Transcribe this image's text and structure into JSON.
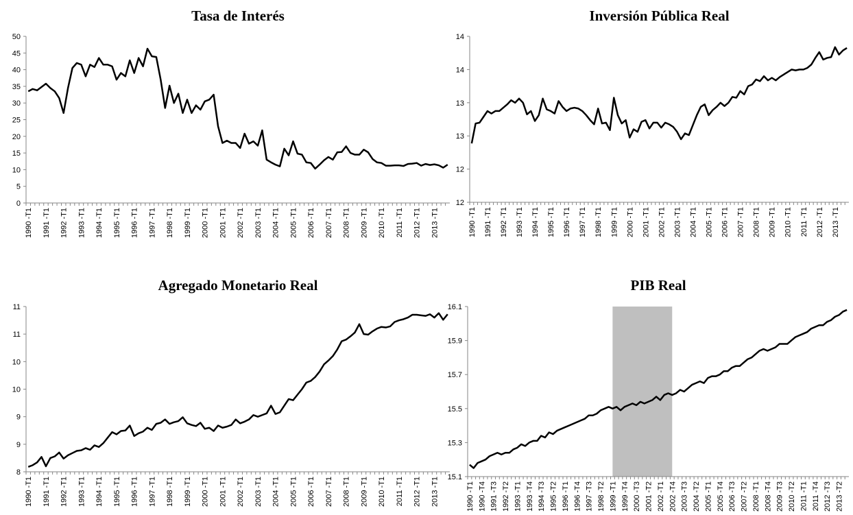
{
  "chart_data": [
    {
      "type": "line",
      "title": "Tasa de Interés",
      "categories": [
        "1990 -T1",
        null,
        null,
        null,
        "1991 -T1",
        null,
        null,
        null,
        "1992 -T1",
        null,
        null,
        null,
        "1993 -T1",
        null,
        null,
        null,
        "1994 -T1",
        null,
        null,
        null,
        "1995 -T1",
        null,
        null,
        null,
        "1996 -T1",
        null,
        null,
        null,
        "1997 -T1",
        null,
        null,
        null,
        "1998 -T1",
        null,
        null,
        null,
        "1999 -T1",
        null,
        null,
        null,
        "2000 -T1",
        null,
        null,
        null,
        "2001 -T1",
        null,
        null,
        null,
        "2002 -T1",
        null,
        null,
        null,
        "2003 -T1",
        null,
        null,
        null,
        "2004 -T1",
        null,
        null,
        null,
        "2005 -T1",
        null,
        null,
        null,
        "2006 -T1",
        null,
        null,
        null,
        "2007 -T1",
        null,
        null,
        null,
        "2008 -T1",
        null,
        null,
        null,
        "2009 -T1",
        null,
        null,
        null,
        "2010 -T1",
        null,
        null,
        null,
        "2011 -T1",
        null,
        null,
        null,
        "2012 -T1",
        null,
        null,
        null,
        "2013 -T1",
        null,
        null,
        null
      ],
      "series": [
        {
          "color": "#000000",
          "values": [
            33.5,
            34.2,
            33.8,
            34.8,
            35.8,
            34.5,
            33.5,
            31.5,
            27,
            34.5,
            40.5,
            42,
            41.5,
            38,
            41.5,
            40.8,
            43.5,
            41.5,
            41.5,
            41,
            37,
            39,
            38,
            42.8,
            39,
            43.5,
            41,
            46.3,
            44,
            43.8,
            37,
            28.5,
            35.2,
            30,
            32.8,
            27,
            31,
            27,
            29.3,
            28,
            30.5,
            31,
            32.5,
            23,
            18,
            18.7,
            18,
            18,
            16.5,
            20.8,
            17.8,
            18.5,
            17.2,
            21.8,
            13,
            12.2,
            11.5,
            11,
            16.3,
            14.3,
            18.5,
            14.8,
            14.5,
            12.2,
            12,
            10.3,
            11.5,
            12.8,
            13.8,
            13,
            15.2,
            15.3,
            17,
            15,
            14.5,
            14.5,
            16,
            15.2,
            13.2,
            12.2,
            12,
            11.2,
            11.2,
            11.3,
            11.3,
            11.1,
            11.7,
            11.8,
            12,
            11.2,
            11.7,
            11.4,
            11.6,
            11.3,
            10.6,
            11.5
          ]
        }
      ],
      "ylim": [
        0,
        50
      ],
      "yticks": [
        0,
        5,
        10,
        15,
        20,
        25,
        30,
        35,
        40,
        45,
        50
      ]
    },
    {
      "type": "line",
      "title": "Inversión Pública  Real",
      "categories": [
        "1990 -T1",
        null,
        null,
        null,
        "1991 -T1",
        null,
        null,
        null,
        "1992 -T1",
        null,
        null,
        null,
        "1993 -T1",
        null,
        null,
        null,
        "1994 -T1",
        null,
        null,
        null,
        "1995 -T1",
        null,
        null,
        null,
        "1996 -T1",
        null,
        null,
        null,
        "1997 -T1",
        null,
        null,
        null,
        "1998 -T1",
        null,
        null,
        null,
        "1999 -T1",
        null,
        null,
        null,
        "2000 -T1",
        null,
        null,
        null,
        "2001 -T1",
        null,
        null,
        null,
        "2002 -T1",
        null,
        null,
        null,
        "2003 -T1",
        null,
        null,
        null,
        "2004 -T1",
        null,
        null,
        null,
        "2005 -T1",
        null,
        null,
        null,
        "2006 -T1",
        null,
        null,
        null,
        "2007 -T1",
        null,
        null,
        null,
        "2008 -T1",
        null,
        null,
        null,
        "2009 -T1",
        null,
        null,
        null,
        "2010 -T1",
        null,
        null,
        null,
        "2011 -T1",
        null,
        null,
        null,
        "2012 -T1",
        null,
        null,
        null,
        "2013 -T1",
        null,
        null,
        null
      ],
      "series": [
        {
          "color": "#000000",
          "values": [
            12.71,
            12.95,
            12.96,
            13.03,
            13.1,
            13.07,
            13.1,
            13.1,
            13.14,
            13.18,
            13.23,
            13.2,
            13.25,
            13.2,
            13.06,
            13.1,
            12.98,
            13.05,
            13.25,
            13.12,
            13.1,
            13.07,
            13.22,
            13.15,
            13.1,
            13.13,
            13.14,
            13.13,
            13.1,
            13.05,
            12.99,
            12.94,
            13.13,
            12.95,
            12.96,
            12.87,
            13.26,
            13.05,
            12.95,
            12.99,
            12.78,
            12.88,
            12.85,
            12.97,
            12.99,
            12.89,
            12.96,
            12.96,
            12.9,
            12.96,
            12.94,
            12.91,
            12.85,
            12.76,
            12.83,
            12.81,
            12.93,
            13.05,
            13.15,
            13.18,
            13.05,
            13.11,
            13.15,
            13.2,
            13.16,
            13.2,
            13.27,
            13.26,
            13.34,
            13.3,
            13.4,
            13.42,
            13.48,
            13.46,
            13.52,
            13.47,
            13.5,
            13.47,
            13.51,
            13.54,
            13.57,
            13.6,
            13.59,
            13.6,
            13.6,
            13.62,
            13.66,
            13.74,
            13.81,
            13.72,
            13.74,
            13.75,
            13.87,
            13.78,
            13.83,
            13.86
          ]
        }
      ],
      "ylim": [
        12,
        14
      ],
      "yticks": [
        12,
        {
          "value": 12.4,
          "label": "12"
        },
        {
          "value": 12.8,
          "label": "13"
        },
        {
          "value": 13.2,
          "label": "13"
        },
        {
          "value": 13.6,
          "label": "14"
        },
        14
      ]
    },
    {
      "type": "line",
      "title": "Agregado Monetario Real",
      "categories": [
        "1990 -T1",
        null,
        null,
        null,
        "1991 -T1",
        null,
        null,
        null,
        "1992 -T1",
        null,
        null,
        null,
        "1993 -T1",
        null,
        null,
        null,
        "1994 -T1",
        null,
        null,
        null,
        "1995 -T1",
        null,
        null,
        null,
        "1996 -T1",
        null,
        null,
        null,
        "1997 -T1",
        null,
        null,
        null,
        "1998 -T1",
        null,
        null,
        null,
        "1999 -T1",
        null,
        null,
        null,
        "2000 -T1",
        null,
        null,
        null,
        "2001 -T1",
        null,
        null,
        null,
        "2002 -T1",
        null,
        null,
        null,
        "2003 -T1",
        null,
        null,
        null,
        "2004 -T1",
        null,
        null,
        null,
        "2005 -T1",
        null,
        null,
        null,
        "2006 -T1",
        null,
        null,
        null,
        "2007 -T1",
        null,
        null,
        null,
        "2008 -T1",
        null,
        null,
        null,
        "2009 -T1",
        null,
        null,
        null,
        "2010 -T1",
        null,
        null,
        null,
        "2011 -T1",
        null,
        null,
        null,
        "2012 -T1",
        null,
        null,
        null,
        "2013 -T1",
        null,
        null,
        null
      ],
      "series": [
        {
          "color": "#000000",
          "values": [
            8.09,
            8.12,
            8.17,
            8.27,
            8.1,
            8.25,
            8.28,
            8.35,
            8.24,
            8.3,
            8.34,
            8.38,
            8.39,
            8.43,
            8.4,
            8.48,
            8.45,
            8.52,
            8.62,
            8.72,
            8.68,
            8.74,
            8.75,
            8.84,
            8.65,
            8.7,
            8.73,
            8.8,
            8.76,
            8.87,
            8.89,
            8.95,
            8.87,
            8.9,
            8.92,
            8.99,
            8.88,
            8.85,
            8.83,
            8.89,
            8.78,
            8.8,
            8.74,
            8.84,
            8.8,
            8.82,
            8.85,
            8.95,
            8.88,
            8.91,
            8.95,
            9.03,
            9.0,
            9.03,
            9.06,
            9.2,
            9.05,
            9.08,
            9.2,
            9.32,
            9.3,
            9.4,
            9.5,
            9.62,
            9.65,
            9.72,
            9.82,
            9.95,
            10.02,
            10.1,
            10.22,
            10.37,
            10.4,
            10.46,
            10.53,
            10.68,
            10.5,
            10.49,
            10.55,
            10.6,
            10.63,
            10.62,
            10.64,
            10.72,
            10.75,
            10.77,
            10.8,
            10.85,
            10.85,
            10.84,
            10.83,
            10.86,
            10.8,
            10.88,
            10.76,
            10.86
          ]
        }
      ],
      "ylim": [
        8,
        11
      ],
      "yticks": [
        8,
        {
          "value": 8.5,
          "label": "9"
        },
        9,
        {
          "value": 9.5,
          "label": "10"
        },
        10,
        {
          "value": 10.5,
          "label": "11"
        },
        11
      ]
    },
    {
      "type": "line",
      "title": "PIB Real",
      "categories": [
        "1990 -T1",
        null,
        null,
        "1990 -T4",
        null,
        null,
        "1991 -T3",
        null,
        null,
        "1992 -T2",
        null,
        null,
        "1993 -T1",
        null,
        null,
        "1993 -T4",
        null,
        null,
        "1994 -T3",
        null,
        null,
        "1995 -T2",
        null,
        null,
        "1996 -T1",
        null,
        null,
        "1996 -T4",
        null,
        null,
        "1997 -T3",
        null,
        null,
        "1998 -T2",
        null,
        null,
        "1999 -T1",
        null,
        null,
        "1999 -T4",
        null,
        null,
        "2000 -T3",
        null,
        null,
        "2001 -T2",
        null,
        null,
        "2002 -T1",
        null,
        null,
        "2002 -T4",
        null,
        null,
        "2003 -T3",
        null,
        null,
        "2004 -T2",
        null,
        null,
        "2005 -T1",
        null,
        null,
        "2005 -T4",
        null,
        null,
        "2006 -T3",
        null,
        null,
        "2007 -T2",
        null,
        null,
        "2008 -T1",
        null,
        null,
        "2008 -T4",
        null,
        null,
        "2009 -T3",
        null,
        null,
        "2010 -T2",
        null,
        null,
        "2011 -T1",
        null,
        null,
        "2011 -T4",
        null,
        null,
        "2012 -T3",
        null,
        null,
        "2013 -T2",
        null,
        null
      ],
      "series": [
        {
          "color": "#000000",
          "values": [
            15.17,
            15.15,
            15.18,
            15.19,
            15.2,
            15.22,
            15.23,
            15.24,
            15.23,
            15.24,
            15.24,
            15.26,
            15.27,
            15.29,
            15.28,
            15.3,
            15.31,
            15.31,
            15.34,
            15.33,
            15.36,
            15.35,
            15.37,
            15.38,
            15.39,
            15.4,
            15.41,
            15.42,
            15.43,
            15.44,
            15.46,
            15.46,
            15.47,
            15.49,
            15.5,
            15.51,
            15.5,
            15.51,
            15.49,
            15.51,
            15.52,
            15.53,
            15.52,
            15.54,
            15.53,
            15.54,
            15.55,
            15.57,
            15.55,
            15.58,
            15.59,
            15.58,
            15.59,
            15.61,
            15.6,
            15.62,
            15.64,
            15.65,
            15.66,
            15.65,
            15.68,
            15.69,
            15.69,
            15.7,
            15.72,
            15.72,
            15.74,
            15.75,
            15.75,
            15.77,
            15.79,
            15.8,
            15.82,
            15.84,
            15.85,
            15.84,
            15.85,
            15.86,
            15.88,
            15.88,
            15.88,
            15.9,
            15.92,
            15.93,
            15.94,
            15.95,
            15.97,
            15.98,
            15.99,
            15.99,
            16.01,
            16.02,
            16.04,
            16.05,
            16.07,
            16.08
          ]
        }
      ],
      "shade": [
        "1999 -T1",
        "2002 -T4"
      ],
      "shade_color": "#bfbfbf",
      "ylim": [
        15.1,
        16.1
      ],
      "yticks": [
        15.1,
        15.3,
        15.5,
        15.7,
        15.9,
        16.1
      ]
    }
  ]
}
